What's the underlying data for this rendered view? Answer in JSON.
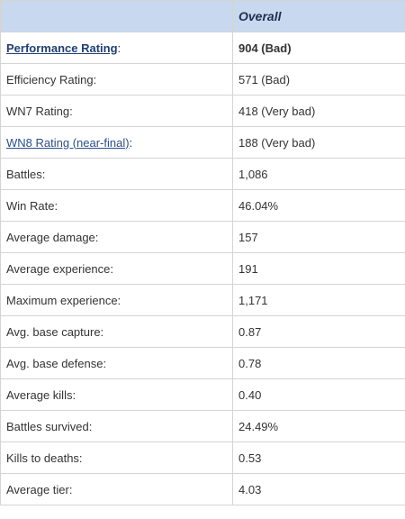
{
  "header": {
    "column_label": "Overall"
  },
  "rows": [
    {
      "label": "Performance Rating",
      "suffix": ":",
      "value": "904 (Bad)"
    },
    {
      "label": "Efficiency Rating:",
      "value": "571 (Bad)"
    },
    {
      "label": "WN7 Rating:",
      "value": "418 (Very bad)"
    },
    {
      "label": "WN8 Rating (near-final)",
      "suffix": ":",
      "value": "188 (Very bad)"
    },
    {
      "label": "Battles:",
      "value": "1,086"
    },
    {
      "label": "Win Rate:",
      "value": "46.04%"
    },
    {
      "label": "Average damage:",
      "value": "157"
    },
    {
      "label": "Average experience:",
      "value": "191"
    },
    {
      "label": "Maximum experience:",
      "value": "1,171"
    },
    {
      "label": "Avg. base capture:",
      "value": "0.87"
    },
    {
      "label": "Avg. base defense:",
      "value": "0.78"
    },
    {
      "label": "Average kills:",
      "value": "0.40"
    },
    {
      "label": "Battles survived:",
      "value": "24.49%"
    },
    {
      "label": "Kills to deaths:",
      "value": "0.53"
    },
    {
      "label": "Average tier:",
      "value": "4.03"
    }
  ]
}
